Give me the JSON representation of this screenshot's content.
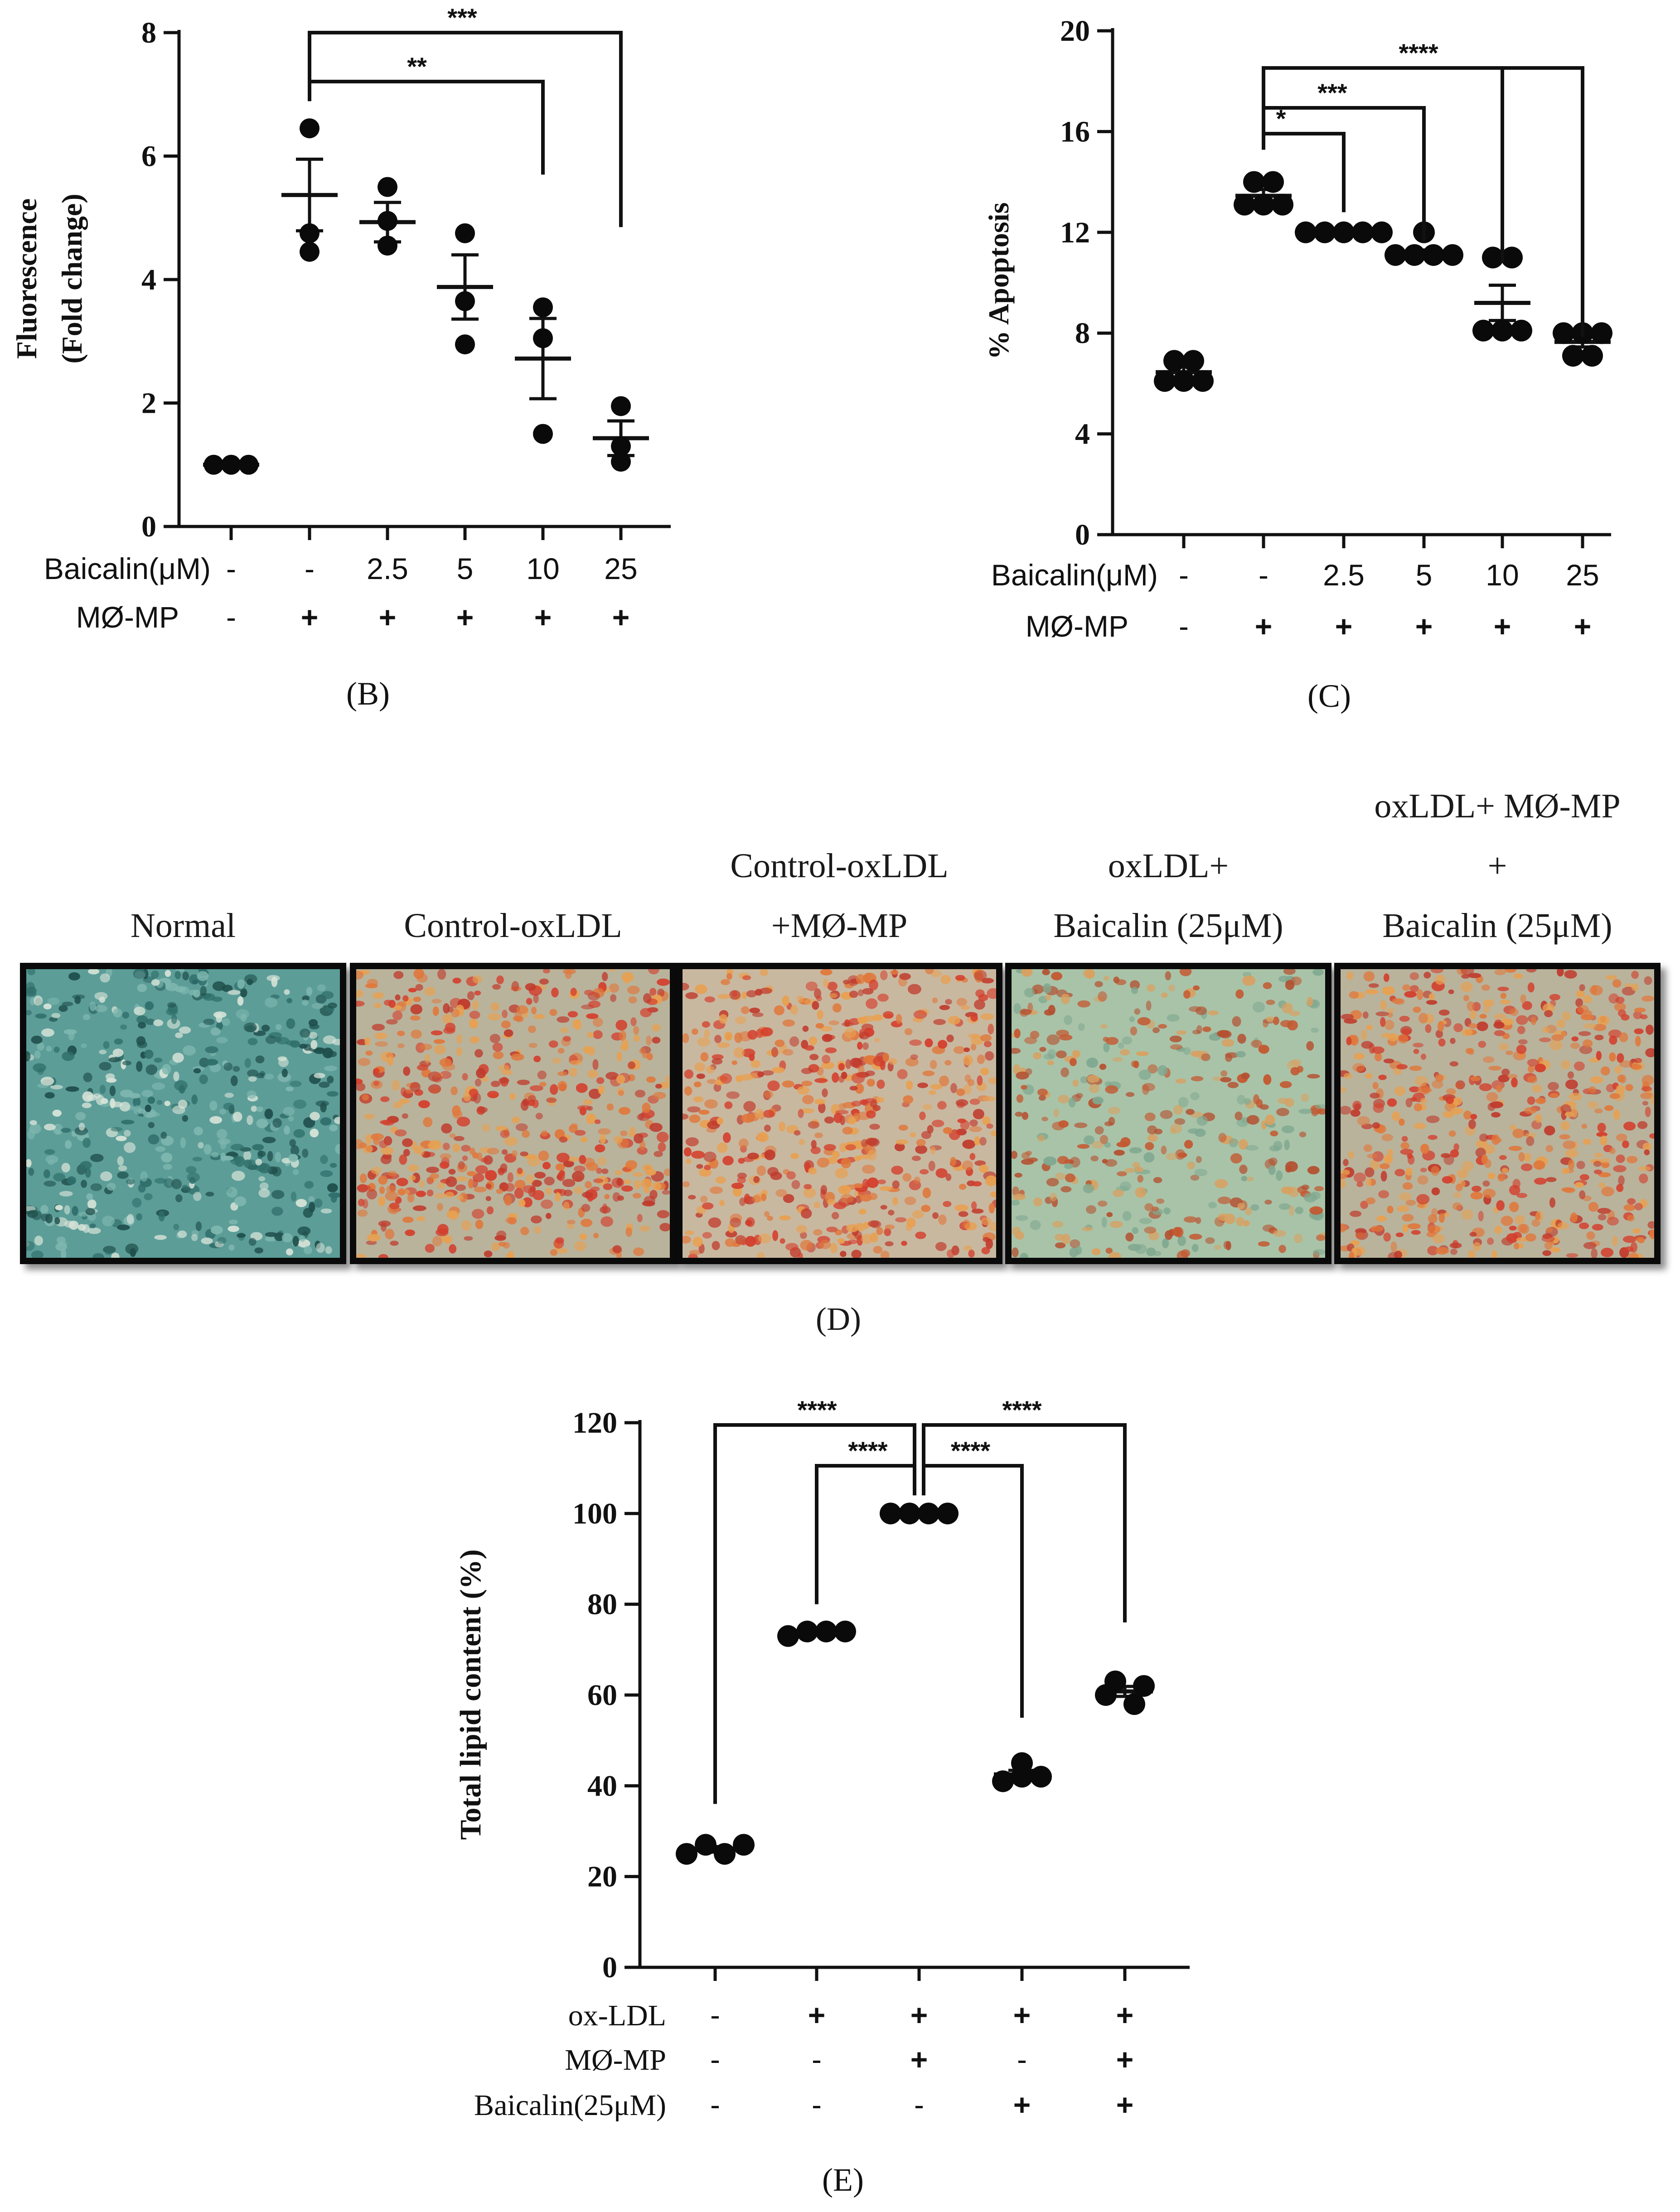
{
  "chart_data": [
    {
      "id": "B",
      "type": "scatter",
      "panel_label": "(B)",
      "ylabel_lines": [
        "Fluorescence",
        "(Fold change)"
      ],
      "ylim": [
        0,
        8
      ],
      "yticks": [
        "0",
        "2",
        "4",
        "6",
        "8"
      ],
      "rows": [
        {
          "label": "Baicalin(μM)",
          "values": [
            "-",
            "-",
            "2.5",
            "5",
            "10",
            "25"
          ]
        },
        {
          "label": "MØ-MP",
          "values": [
            "-",
            "+",
            "+",
            "+",
            "+",
            "+"
          ]
        }
      ],
      "groups": [
        {
          "points": [
            1.0,
            1.0,
            1.0
          ],
          "mean": 1.0,
          "sem": 0.0
        },
        {
          "points": [
            6.45,
            4.75,
            4.45
          ],
          "mean": 5.37,
          "sem": 0.58
        },
        {
          "points": [
            5.5,
            4.95,
            4.55
          ],
          "mean": 4.93,
          "sem": 0.32
        },
        {
          "points": [
            4.75,
            3.65,
            2.95
          ],
          "mean": 3.88,
          "sem": 0.52
        },
        {
          "points": [
            3.55,
            3.05,
            1.5
          ],
          "mean": 2.72,
          "sem": 0.65
        },
        {
          "points": [
            1.95,
            1.3,
            1.05
          ],
          "mean": 1.43,
          "sem": 0.28
        }
      ],
      "brackets": [
        {
          "from": 1,
          "to": 5,
          "label": "***"
        },
        {
          "from": 1,
          "to": 4,
          "label": "**"
        }
      ]
    },
    {
      "id": "C",
      "type": "scatter",
      "panel_label": "(C)",
      "ylabel_lines": [
        "% Apoptosis"
      ],
      "ylim": [
        0,
        20
      ],
      "yticks": [
        "0",
        "4",
        "8",
        "12",
        "16",
        "20"
      ],
      "rows": [
        {
          "label": "Baicalin(μM)",
          "values": [
            "-",
            "-",
            "2.5",
            "5",
            "10",
            "25"
          ]
        },
        {
          "label": "MØ-MP",
          "values": [
            "-",
            "+",
            "+",
            "+",
            "+",
            "+"
          ]
        }
      ],
      "groups": [
        {
          "points": [
            6.9,
            6.9,
            6.1,
            6.1,
            6.1
          ],
          "mean": 6.45,
          "sem": 0.22
        },
        {
          "points": [
            14.0,
            14.0,
            13.1,
            13.1,
            13.1
          ],
          "mean": 13.45,
          "sem": 0.25
        },
        {
          "points": [
            12.0,
            12.0,
            12.0,
            12.0,
            12.0
          ],
          "mean": 12.0,
          "sem": 0.0
        },
        {
          "points": [
            12.0,
            11.1,
            11.1,
            11.1,
            11.1
          ],
          "mean": 11.2,
          "sem": 0.1
        },
        {
          "points": [
            11.0,
            11.0,
            8.1,
            8.1,
            8.1
          ],
          "mean": 9.2,
          "sem": 0.7
        },
        {
          "points": [
            8.0,
            8.0,
            8.0,
            7.1,
            7.1
          ],
          "mean": 7.65,
          "sem": 0.2
        }
      ],
      "brackets": [
        {
          "from": 1,
          "to": 5,
          "label": "****",
          "shared": true
        },
        {
          "from": 1,
          "to": 4,
          "label": "",
          "shared": true
        },
        {
          "from": 1,
          "to": 3,
          "label": "***"
        },
        {
          "from": 1,
          "to": 2,
          "label": "*"
        }
      ]
    },
    {
      "id": "E",
      "type": "scatter",
      "panel_label": "(E)",
      "ylabel_lines": [
        "Total lipid content (%)"
      ],
      "ylim": [
        0,
        120
      ],
      "yticks": [
        "0",
        "20",
        "40",
        "60",
        "80",
        "100",
        "120"
      ],
      "rows": [
        {
          "label": "ox-LDL",
          "values": [
            "-",
            "+",
            "+",
            "+",
            "+"
          ]
        },
        {
          "label": "MØ-MP",
          "values": [
            "-",
            "-",
            "+",
            "-",
            "+"
          ]
        },
        {
          "label": "Baicalin(25μM)",
          "values": [
            "-",
            "-",
            "-",
            "+",
            "+"
          ]
        }
      ],
      "groups": [
        {
          "points": [
            25,
            27,
            25,
            27
          ],
          "mean": 26,
          "sem": 0.6
        },
        {
          "points": [
            73,
            74,
            74,
            74
          ],
          "mean": 73.8,
          "sem": 0.3
        },
        {
          "points": [
            100,
            100,
            100,
            100
          ],
          "mean": 100,
          "sem": 0.0
        },
        {
          "points": [
            45,
            41,
            42,
            42
          ],
          "mean": 42.5,
          "sem": 0.9
        },
        {
          "points": [
            63,
            60,
            62,
            58
          ],
          "mean": 60.8,
          "sem": 1.1
        }
      ],
      "brackets": [
        {
          "from": 0,
          "to": 2,
          "label": "****"
        },
        {
          "from": 1,
          "to": 2,
          "label": "****"
        },
        {
          "from": 2,
          "to": 4,
          "label": "****"
        },
        {
          "from": 2,
          "to": 3,
          "label": "****"
        }
      ]
    }
  ],
  "panel_d": {
    "label": "(D)",
    "images": [
      {
        "lines": [
          "Normal"
        ],
        "tint": "#3f8a86"
      },
      {
        "lines": [
          "Control-oxLDL"
        ],
        "tint": "#d2603c"
      },
      {
        "lines": [
          "Control-oxLDL",
          "+MØ-MP"
        ],
        "tint": "#d84a3a"
      },
      {
        "lines": [
          "oxLDL+",
          "Baicalin (25μM)"
        ],
        "tint": "#b9a47a"
      },
      {
        "lines": [
          "oxLDL+ MØ-MP",
          "+",
          "Baicalin (25μM)"
        ],
        "tint": "#b8583c"
      }
    ]
  }
}
